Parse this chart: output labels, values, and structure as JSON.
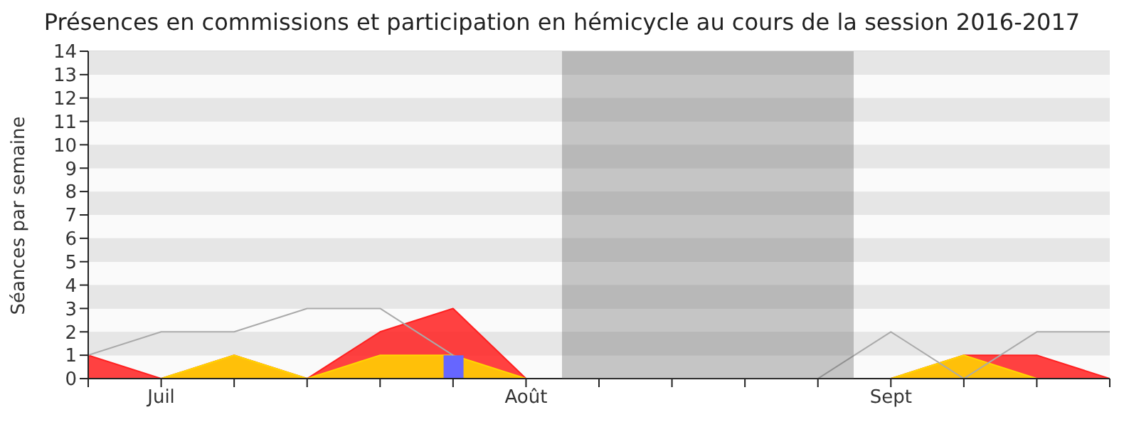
{
  "chart_data": {
    "type": "area",
    "title": "Présences en commissions et participation en hémicycle au cours de la session 2016-2017",
    "ylabel": "Séances par semaine",
    "categories": [
      null,
      "Juil",
      null,
      null,
      null,
      null,
      "Août",
      null,
      null,
      null,
      null,
      "Sept",
      null,
      null,
      null
    ],
    "series": [
      {
        "type": "line",
        "color": "#aaaaaa",
        "values": [
          1,
          2,
          2,
          3,
          3,
          1,
          null,
          null,
          null,
          null,
          0,
          2,
          0,
          2,
          2
        ]
      },
      {
        "color": "#ff2020",
        "values": [
          1,
          0,
          1,
          0,
          2,
          3,
          0,
          0,
          0,
          0,
          0,
          0,
          1,
          1,
          0
        ]
      },
      {
        "color": "#ffd700",
        "values": [
          0,
          0,
          1,
          0,
          1,
          1,
          0,
          0,
          0,
          0,
          0,
          0,
          1,
          0,
          0
        ]
      },
      {
        "type": "bar",
        "color": "#6666ff",
        "values": [
          0,
          0,
          0,
          0,
          0,
          1,
          0,
          0,
          0,
          0,
          0,
          0,
          0,
          0,
          0
        ]
      }
    ],
    "ylim": [
      0,
      14
    ],
    "yticks": [
      0,
      1,
      2,
      3,
      4,
      5,
      6,
      7,
      8,
      9,
      10,
      11,
      12,
      13,
      14
    ],
    "grid": "y",
    "marker": "none",
    "legend": false
  }
}
